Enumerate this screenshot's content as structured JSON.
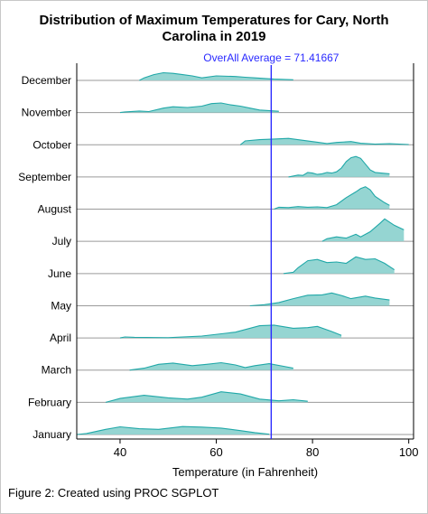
{
  "chart_data": {
    "type": "area",
    "title_line1": "Distribution of Maximum Temperatures for Cary, North",
    "title_line2": "Carolina in 2019",
    "xlabel": "Temperature (in Fahrenheit)",
    "xlim": [
      31,
      101
    ],
    "xticks": [
      40,
      60,
      80,
      100
    ],
    "reference_line": {
      "value": 71.41667,
      "label": "OverAll Average = 71.41667",
      "color": "#2a2aff"
    },
    "fill_color": "#8fd3d0",
    "stroke_color": "#20a8a8",
    "series": [
      {
        "name": "January",
        "points": [
          [
            31,
            0
          ],
          [
            33,
            0.08
          ],
          [
            37,
            0.4
          ],
          [
            40,
            0.6
          ],
          [
            44,
            0.45
          ],
          [
            48,
            0.4
          ],
          [
            53,
            0.62
          ],
          [
            57,
            0.58
          ],
          [
            61,
            0.5
          ],
          [
            65,
            0.3
          ],
          [
            68,
            0.15
          ],
          [
            71,
            0.02
          ]
        ]
      },
      {
        "name": "February",
        "points": [
          [
            37,
            0
          ],
          [
            40,
            0.3
          ],
          [
            45,
            0.55
          ],
          [
            50,
            0.35
          ],
          [
            54,
            0.25
          ],
          [
            57,
            0.4
          ],
          [
            61,
            0.82
          ],
          [
            65,
            0.65
          ],
          [
            69,
            0.25
          ],
          [
            73,
            0.12
          ],
          [
            76,
            0.2
          ],
          [
            79,
            0.08
          ]
        ]
      },
      {
        "name": "March",
        "points": [
          [
            42,
            0
          ],
          [
            45,
            0.15
          ],
          [
            48,
            0.45
          ],
          [
            51,
            0.55
          ],
          [
            55,
            0.35
          ],
          [
            58,
            0.45
          ],
          [
            61,
            0.58
          ],
          [
            64,
            0.4
          ],
          [
            66,
            0.2
          ],
          [
            68,
            0.35
          ],
          [
            71,
            0.5
          ],
          [
            74,
            0.3
          ],
          [
            76,
            0.15
          ]
        ]
      },
      {
        "name": "April",
        "points": [
          [
            40,
            0
          ],
          [
            41,
            0.08
          ],
          [
            43,
            0.05
          ],
          [
            50,
            0.02
          ],
          [
            57,
            0.15
          ],
          [
            64,
            0.45
          ],
          [
            69,
            0.95
          ],
          [
            72,
            1.0
          ],
          [
            76,
            0.75
          ],
          [
            79,
            0.8
          ],
          [
            81,
            0.9
          ],
          [
            84,
            0.5
          ],
          [
            86,
            0.2
          ]
        ]
      },
      {
        "name": "May",
        "points": [
          [
            67,
            0
          ],
          [
            70,
            0.08
          ],
          [
            73,
            0.25
          ],
          [
            76,
            0.55
          ],
          [
            79,
            0.82
          ],
          [
            82,
            0.85
          ],
          [
            84,
            1.0
          ],
          [
            86,
            0.8
          ],
          [
            88,
            0.55
          ],
          [
            91,
            0.75
          ],
          [
            93,
            0.6
          ],
          [
            96,
            0.45
          ]
        ]
      },
      {
        "name": "June",
        "points": [
          [
            74,
            0
          ],
          [
            76,
            0.1
          ],
          [
            77,
            0.45
          ],
          [
            79,
            1.0
          ],
          [
            81,
            1.1
          ],
          [
            83,
            0.85
          ],
          [
            85,
            0.9
          ],
          [
            87,
            0.8
          ],
          [
            89,
            1.3
          ],
          [
            91,
            1.1
          ],
          [
            93,
            1.15
          ],
          [
            95,
            0.8
          ],
          [
            97,
            0.3
          ]
        ]
      },
      {
        "name": "July",
        "points": [
          [
            82,
            0
          ],
          [
            83,
            0.2
          ],
          [
            85,
            0.35
          ],
          [
            87,
            0.25
          ],
          [
            89,
            0.55
          ],
          [
            90,
            0.35
          ],
          [
            92,
            0.75
          ],
          [
            94,
            1.4
          ],
          [
            95,
            1.75
          ],
          [
            96,
            1.5
          ],
          [
            97,
            1.25
          ],
          [
            99,
            0.9
          ]
        ]
      },
      {
        "name": "August",
        "points": [
          [
            72,
            0
          ],
          [
            73,
            0.15
          ],
          [
            75,
            0.12
          ],
          [
            77,
            0.2
          ],
          [
            79,
            0.15
          ],
          [
            81,
            0.18
          ],
          [
            83,
            0.12
          ],
          [
            85,
            0.35
          ],
          [
            87,
            0.9
          ],
          [
            89,
            1.35
          ],
          [
            90,
            1.6
          ],
          [
            91,
            1.75
          ],
          [
            92,
            1.5
          ],
          [
            93,
            1.0
          ],
          [
            95,
            0.5
          ],
          [
            96,
            0.3
          ]
        ]
      },
      {
        "name": "September",
        "points": [
          [
            75,
            0
          ],
          [
            77,
            0.15
          ],
          [
            78,
            0.12
          ],
          [
            79,
            0.35
          ],
          [
            80,
            0.3
          ],
          [
            81,
            0.2
          ],
          [
            82,
            0.25
          ],
          [
            83,
            0.35
          ],
          [
            84,
            0.3
          ],
          [
            85,
            0.4
          ],
          [
            86,
            0.7
          ],
          [
            87,
            1.2
          ],
          [
            88,
            1.5
          ],
          [
            89,
            1.6
          ],
          [
            90,
            1.45
          ],
          [
            91,
            1.0
          ],
          [
            92,
            0.55
          ],
          [
            93,
            0.35
          ],
          [
            96,
            0.25
          ]
        ]
      },
      {
        "name": "October",
        "points": [
          [
            65,
            0
          ],
          [
            66,
            0.3
          ],
          [
            69,
            0.4
          ],
          [
            72,
            0.45
          ],
          [
            75,
            0.5
          ],
          [
            78,
            0.35
          ],
          [
            81,
            0.2
          ],
          [
            83,
            0.1
          ],
          [
            85,
            0.18
          ],
          [
            88,
            0.25
          ],
          [
            90,
            0.12
          ],
          [
            93,
            0.05
          ],
          [
            96,
            0.08
          ],
          [
            100,
            0.02
          ]
        ]
      },
      {
        "name": "November",
        "points": [
          [
            40,
            0
          ],
          [
            41,
            0.05
          ],
          [
            44,
            0.12
          ],
          [
            46,
            0.08
          ],
          [
            49,
            0.35
          ],
          [
            51,
            0.45
          ],
          [
            54,
            0.4
          ],
          [
            57,
            0.5
          ],
          [
            59,
            0.7
          ],
          [
            61,
            0.75
          ],
          [
            63,
            0.6
          ],
          [
            65,
            0.5
          ],
          [
            67,
            0.35
          ],
          [
            69,
            0.2
          ],
          [
            73,
            0.1
          ]
        ]
      },
      {
        "name": "December",
        "points": [
          [
            44,
            0
          ],
          [
            45,
            0.2
          ],
          [
            47,
            0.45
          ],
          [
            49,
            0.6
          ],
          [
            51,
            0.55
          ],
          [
            53,
            0.45
          ],
          [
            55,
            0.35
          ],
          [
            57,
            0.2
          ],
          [
            60,
            0.35
          ],
          [
            64,
            0.3
          ],
          [
            66,
            0.25
          ],
          [
            68,
            0.2
          ],
          [
            72,
            0.1
          ],
          [
            76,
            0.05
          ]
        ]
      }
    ]
  },
  "caption": "Figure 2: Created using PROC SGPLOT"
}
